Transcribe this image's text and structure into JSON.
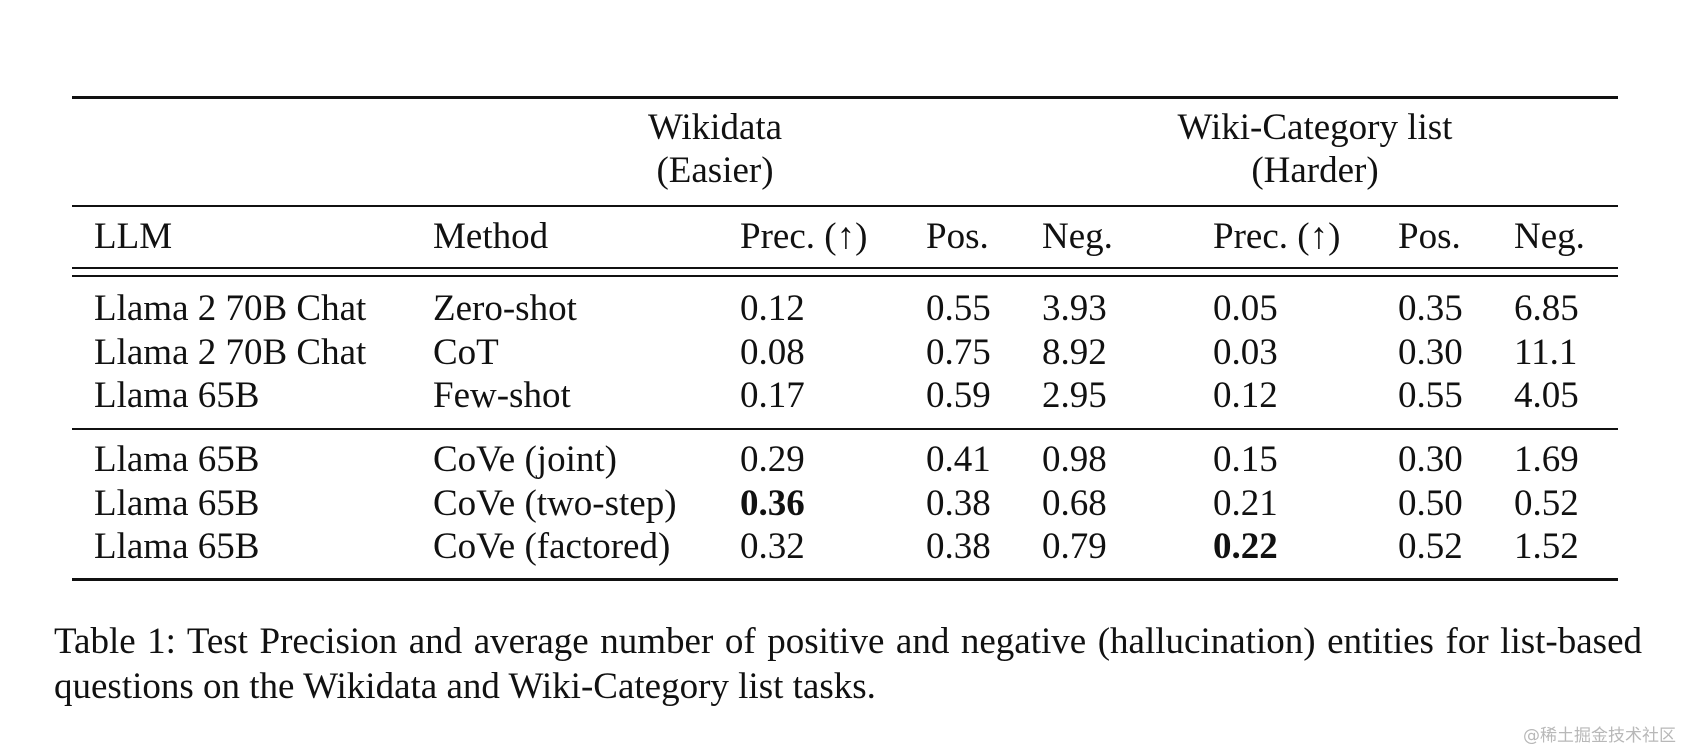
{
  "table": {
    "group_headers": [
      {
        "line1": "Wikidata",
        "line2": "(Easier)"
      },
      {
        "line1": "Wiki-Category list",
        "line2": "(Harder)"
      }
    ],
    "columns": [
      "LLM",
      "Method",
      "Prec. (↑)",
      "Pos.",
      "Neg.",
      "Prec. (↑)",
      "Pos.",
      "Neg."
    ],
    "row_groups": [
      [
        {
          "llm": "Llama 2 70B Chat",
          "method": "Zero-shot",
          "w_prec": "0.12",
          "w_pos": "0.55",
          "w_neg": "3.93",
          "c_prec": "0.05",
          "c_pos": "0.35",
          "c_neg": "6.85"
        },
        {
          "llm": "Llama 2 70B Chat",
          "method": "CoT",
          "w_prec": "0.08",
          "w_pos": "0.75",
          "w_neg": "8.92",
          "c_prec": "0.03",
          "c_pos": "0.30",
          "c_neg": "11.1"
        },
        {
          "llm": "Llama 65B",
          "method": "Few-shot",
          "w_prec": "0.17",
          "w_pos": "0.59",
          "w_neg": "2.95",
          "c_prec": "0.12",
          "c_pos": "0.55",
          "c_neg": "4.05"
        }
      ],
      [
        {
          "llm": "Llama 65B",
          "method": "CoVe (joint)",
          "w_prec": "0.29",
          "w_pos": "0.41",
          "w_neg": "0.98",
          "c_prec": "0.15",
          "c_pos": "0.30",
          "c_neg": "1.69"
        },
        {
          "llm": "Llama 65B",
          "method": "CoVe (two-step)",
          "w_prec": "0.36",
          "w_pos": "0.38",
          "w_neg": "0.68",
          "c_prec": "0.21",
          "c_pos": "0.50",
          "c_neg": "0.52"
        },
        {
          "llm": "Llama 65B",
          "method": "CoVe (factored)",
          "w_prec": "0.32",
          "w_pos": "0.38",
          "w_neg": "0.79",
          "c_prec": "0.22",
          "c_pos": "0.52",
          "c_neg": "1.52"
        }
      ]
    ],
    "bold_cells": [
      {
        "group": 1,
        "row": 1,
        "key": "w_prec"
      },
      {
        "group": 1,
        "row": 2,
        "key": "c_prec"
      }
    ]
  },
  "caption": "Table 1: Test Precision and average number of positive and negative (hallucination) entities for list-based questions on the Wikidata and Wiki-Category list tasks.",
  "watermark": "@稀土掘金技术社区"
}
